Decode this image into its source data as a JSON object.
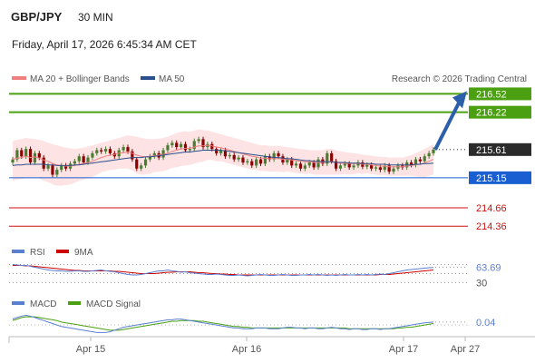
{
  "header": {
    "symbol": "GBP/JPY",
    "timeframe": "30 MIN",
    "datetime": "Friday, April 17, 2026 6:45:34 AM CET",
    "credit": "Research © 2026 Trading Central"
  },
  "colors": {
    "ma20": "#f08080",
    "ma50": "#2b4f8c",
    "bollinger_fill": "#fde3e3",
    "candle_up": "#4a7c32",
    "candle_down": "#8b0000",
    "green_level": "#4aa010",
    "blue_level": "#1a5fd1",
    "red_level": "#cc1111",
    "last_price_bg": "#2b2b2b",
    "arrow": "#2b5faa",
    "rsi": "#5b7fd0",
    "rsi_ma": "#cc0000",
    "macd": "#5b7fd0",
    "macd_signal": "#4aa010"
  },
  "chart_data": [
    {
      "type": "candlestick",
      "legend": [
        {
          "name": "MA 20 + Bollinger Bands",
          "color": "#f08080"
        },
        {
          "name": "MA 50",
          "color": "#2b4f8c"
        }
      ],
      "legend_position": "top-left",
      "ylim": [
        214.2,
        216.6
      ],
      "x_ticks": [
        "Apr 15",
        "Apr 16",
        "Apr 17",
        "Apr 27"
      ],
      "levels": [
        {
          "value": 216.52,
          "label": "216.52",
          "style": "green-box"
        },
        {
          "value": 216.22,
          "label": "216.22",
          "style": "green-box"
        },
        {
          "value": 215.61,
          "label": "215.61",
          "style": "last-price"
        },
        {
          "value": 215.15,
          "label": "215.15",
          "style": "blue-box"
        },
        {
          "value": 214.66,
          "label": "214.66",
          "style": "red-text"
        },
        {
          "value": 214.36,
          "label": "214.36",
          "style": "red-text"
        }
      ],
      "close": [
        215.45,
        215.6,
        215.5,
        215.62,
        215.4,
        215.55,
        215.48,
        215.3,
        215.35,
        215.2,
        215.28,
        215.35,
        215.3,
        215.38,
        215.42,
        215.5,
        215.4,
        215.48,
        215.55,
        215.6,
        215.58,
        215.62,
        215.55,
        215.5,
        215.6,
        215.65,
        215.58,
        215.45,
        215.3,
        215.35,
        215.45,
        215.5,
        215.55,
        215.48,
        215.6,
        215.68,
        215.72,
        215.65,
        215.7,
        215.6,
        215.62,
        215.75,
        215.78,
        215.65,
        215.7,
        215.62,
        215.55,
        215.6,
        215.5,
        215.52,
        215.45,
        215.48,
        215.4,
        215.42,
        215.35,
        215.45,
        215.38,
        215.5,
        215.45,
        215.55,
        215.5,
        215.4,
        215.45,
        215.35,
        215.38,
        215.3,
        215.35,
        215.4,
        215.32,
        215.45,
        215.38,
        215.55,
        215.42,
        215.3,
        215.35,
        215.38,
        215.32,
        215.35,
        215.4,
        215.33,
        215.36,
        215.3,
        215.32,
        215.28,
        215.35,
        215.25,
        215.3,
        215.35,
        215.32,
        215.4,
        215.36,
        215.45,
        215.42,
        215.5,
        215.55,
        215.61
      ],
      "ma20": [
        215.45,
        215.47,
        215.48,
        215.5,
        215.48,
        215.49,
        215.47,
        215.44,
        215.42,
        215.38,
        215.36,
        215.35,
        215.34,
        215.34,
        215.35,
        215.37,
        215.38,
        215.4,
        215.42,
        215.45,
        215.48,
        215.5,
        215.52,
        215.53,
        215.55,
        215.56,
        215.57,
        215.55,
        215.52,
        215.5,
        215.49,
        215.5,
        215.51,
        215.52,
        215.53,
        215.55,
        215.58,
        215.6,
        215.62,
        215.63,
        215.63,
        215.65,
        215.67,
        215.67,
        215.68,
        215.67,
        215.65,
        215.64,
        215.62,
        215.6,
        215.58,
        215.56,
        215.54,
        215.52,
        215.5,
        215.49,
        215.47,
        215.47,
        215.46,
        215.46,
        215.46,
        215.45,
        215.45,
        215.44,
        215.43,
        215.42,
        215.41,
        215.41,
        215.4,
        215.4,
        215.4,
        215.41,
        215.41,
        215.4,
        215.39,
        215.39,
        215.38,
        215.38,
        215.38,
        215.37,
        215.37,
        215.36,
        215.35,
        215.34,
        215.34,
        215.33,
        215.33,
        215.33,
        215.33,
        215.34,
        215.35,
        215.36,
        215.37,
        215.39,
        215.42,
        215.45
      ],
      "ma50": [
        215.35,
        215.36,
        215.36,
        215.37,
        215.37,
        215.37,
        215.37,
        215.37,
        215.36,
        215.36,
        215.35,
        215.35,
        215.35,
        215.35,
        215.36,
        215.36,
        215.37,
        215.38,
        215.39,
        215.4,
        215.41,
        215.42,
        215.43,
        215.44,
        215.45,
        215.46,
        215.47,
        215.48,
        215.48,
        215.48,
        215.49,
        215.49,
        215.5,
        215.51,
        215.52,
        215.53,
        215.54,
        215.55,
        215.56,
        215.57,
        215.57,
        215.58,
        215.59,
        215.6,
        215.6,
        215.6,
        215.6,
        215.6,
        215.59,
        215.58,
        215.57,
        215.56,
        215.55,
        215.54,
        215.53,
        215.52,
        215.51,
        215.5,
        215.49,
        215.48,
        215.48,
        215.47,
        215.46,
        215.46,
        215.45,
        215.44,
        215.43,
        215.43,
        215.42,
        215.42,
        215.41,
        215.41,
        215.41,
        215.4,
        215.4,
        215.4,
        215.39,
        215.39,
        215.39,
        215.38,
        215.38,
        215.38,
        215.37,
        215.37,
        215.37,
        215.36,
        215.36,
        215.36,
        215.36,
        215.36,
        215.36,
        215.37,
        215.37,
        215.38,
        215.38,
        215.39
      ],
      "bb_upper": [
        215.75,
        215.77,
        215.78,
        215.8,
        215.79,
        215.78,
        215.77,
        215.75,
        215.72,
        215.7,
        215.68,
        215.66,
        215.64,
        215.63,
        215.62,
        215.63,
        215.64,
        215.66,
        215.68,
        215.7,
        215.72,
        215.74,
        215.76,
        215.78,
        215.8,
        215.82,
        215.84,
        215.83,
        215.82,
        215.8,
        215.79,
        215.78,
        215.78,
        215.79,
        215.8,
        215.82,
        215.85,
        215.88,
        215.9,
        215.91,
        215.9,
        215.92,
        215.94,
        215.93,
        215.92,
        215.9,
        215.88,
        215.86,
        215.84,
        215.82,
        215.8,
        215.78,
        215.76,
        215.74,
        215.72,
        215.7,
        215.68,
        215.68,
        215.67,
        215.67,
        215.67,
        215.66,
        215.65,
        215.64,
        215.63,
        215.62,
        215.61,
        215.6,
        215.6,
        215.6,
        215.6,
        215.62,
        215.62,
        215.6,
        215.58,
        215.57,
        215.56,
        215.55,
        215.54,
        215.53,
        215.52,
        215.51,
        215.5,
        215.49,
        215.49,
        215.48,
        215.48,
        215.48,
        215.48,
        215.5,
        215.52,
        215.55,
        215.58,
        215.62,
        215.66,
        215.7
      ],
      "bb_lower": [
        215.1,
        215.12,
        215.13,
        215.15,
        215.14,
        215.15,
        215.14,
        215.1,
        215.08,
        215.04,
        215.02,
        215.02,
        215.03,
        215.04,
        215.07,
        215.1,
        215.12,
        215.14,
        215.16,
        215.2,
        215.24,
        215.26,
        215.28,
        215.28,
        215.3,
        215.3,
        215.3,
        215.27,
        215.22,
        215.2,
        215.2,
        215.22,
        215.24,
        215.25,
        215.26,
        215.28,
        215.31,
        215.32,
        215.34,
        215.35,
        215.36,
        215.38,
        215.4,
        215.41,
        215.44,
        215.44,
        215.42,
        215.42,
        215.4,
        215.38,
        215.36,
        215.34,
        215.32,
        215.3,
        215.28,
        215.28,
        215.26,
        215.26,
        215.25,
        215.25,
        215.25,
        215.24,
        215.25,
        215.24,
        215.23,
        215.22,
        215.21,
        215.22,
        215.2,
        215.2,
        215.2,
        215.2,
        215.2,
        215.2,
        215.2,
        215.21,
        215.2,
        215.21,
        215.22,
        215.21,
        215.22,
        215.21,
        215.2,
        215.19,
        215.19,
        215.18,
        215.18,
        215.18,
        215.18,
        215.18,
        215.18,
        215.17,
        215.16,
        215.16,
        215.18,
        215.2
      ]
    },
    {
      "type": "line",
      "legend": [
        {
          "name": "RSI",
          "color": "#5b7fd0"
        },
        {
          "name": "9MA",
          "color": "#cc0000"
        }
      ],
      "legend_position": "top-left",
      "ylim": [
        25,
        75
      ],
      "levels": [
        {
          "value": 63.69,
          "label": "63.69"
        },
        {
          "value": 30,
          "label": "30"
        }
      ],
      "series": [
        {
          "name": "RSI",
          "values": [
            70,
            69,
            68,
            68,
            66,
            64,
            62,
            60,
            58,
            57,
            56,
            56,
            55,
            55,
            56,
            56,
            55,
            55,
            56,
            57,
            58,
            56,
            55,
            54,
            52,
            50,
            48,
            47,
            47,
            48,
            50,
            52,
            54,
            56,
            56,
            58,
            56,
            55,
            53,
            54,
            52,
            51,
            50,
            49,
            48,
            48,
            49,
            48,
            47,
            46,
            46,
            47,
            46,
            45,
            46,
            47,
            48,
            47,
            46,
            46,
            47,
            48,
            47,
            46,
            46,
            47,
            47,
            48,
            47,
            48,
            47,
            46,
            47,
            46,
            47,
            48,
            47,
            47,
            48,
            47,
            48,
            47,
            48,
            49,
            48,
            50,
            52,
            54,
            56,
            58,
            59,
            60,
            61,
            62,
            63,
            63.69
          ]
        },
        {
          "name": "9MA",
          "values": [
            68,
            68,
            68,
            67,
            67,
            66,
            65,
            64,
            63,
            62,
            61,
            60,
            59,
            58,
            57,
            57,
            56,
            56,
            56,
            56,
            56,
            56,
            56,
            55,
            55,
            54,
            53,
            52,
            51,
            50,
            50,
            50,
            50,
            51,
            52,
            53,
            53,
            54,
            54,
            54,
            54,
            53,
            52,
            52,
            51,
            50,
            50,
            49,
            49,
            48,
            48,
            47,
            47,
            47,
            47,
            47,
            47,
            47,
            47,
            47,
            47,
            47,
            47,
            47,
            47,
            47,
            47,
            47,
            47,
            47,
            47,
            47,
            47,
            47,
            47,
            47,
            47,
            47,
            47,
            47,
            47,
            47,
            47,
            48,
            48,
            48,
            49,
            50,
            51,
            52,
            53,
            54,
            55,
            56,
            57,
            58
          ]
        }
      ]
    },
    {
      "type": "line",
      "legend": [
        {
          "name": "MACD",
          "color": "#5b7fd0"
        },
        {
          "name": "MACD Signal",
          "color": "#4aa010"
        }
      ],
      "legend_position": "top-left",
      "ylim": [
        -0.12,
        0.16
      ],
      "levels": [
        {
          "value": 0.04,
          "label": "0.04"
        }
      ],
      "series": [
        {
          "name": "MACD",
          "values": [
            0.08,
            0.1,
            0.12,
            0.13,
            0.12,
            0.1,
            0.08,
            0.06,
            0.04,
            0.02,
            0.0,
            -0.02,
            -0.03,
            -0.04,
            -0.05,
            -0.06,
            -0.07,
            -0.08,
            -0.09,
            -0.1,
            -0.1,
            -0.1,
            -0.09,
            -0.07,
            -0.05,
            -0.03,
            -0.02,
            -0.01,
            0.0,
            0.01,
            0.02,
            0.03,
            0.04,
            0.05,
            0.06,
            0.07,
            0.07,
            0.08,
            0.08,
            0.07,
            0.06,
            0.05,
            0.04,
            0.03,
            0.02,
            0.01,
            0.0,
            -0.01,
            -0.02,
            -0.03,
            -0.04,
            -0.04,
            -0.05,
            -0.05,
            -0.05,
            -0.04,
            -0.04,
            -0.04,
            -0.05,
            -0.05,
            -0.05,
            -0.04,
            -0.03,
            -0.03,
            -0.04,
            -0.04,
            -0.05,
            -0.04,
            -0.04,
            -0.05,
            -0.05,
            -0.04,
            -0.03,
            -0.04,
            -0.05,
            -0.05,
            -0.06,
            -0.05,
            -0.05,
            -0.06,
            -0.06,
            -0.05,
            -0.05,
            -0.06,
            -0.05,
            -0.05,
            -0.04,
            -0.03,
            -0.02,
            -0.01,
            0.0,
            0.01,
            0.02,
            0.03,
            0.035,
            0.04
          ]
        },
        {
          "name": "MACD Signal",
          "values": [
            0.06,
            0.08,
            0.1,
            0.11,
            0.11,
            0.11,
            0.1,
            0.09,
            0.08,
            0.07,
            0.06,
            0.04,
            0.03,
            0.02,
            0.01,
            0.0,
            -0.01,
            -0.02,
            -0.03,
            -0.04,
            -0.05,
            -0.06,
            -0.07,
            -0.07,
            -0.07,
            -0.06,
            -0.05,
            -0.04,
            -0.03,
            -0.02,
            -0.01,
            0.0,
            0.01,
            0.02,
            0.03,
            0.04,
            0.05,
            0.05,
            0.06,
            0.06,
            0.06,
            0.06,
            0.05,
            0.05,
            0.04,
            0.03,
            0.02,
            0.01,
            0.0,
            -0.01,
            -0.02,
            -0.02,
            -0.03,
            -0.03,
            -0.04,
            -0.04,
            -0.04,
            -0.04,
            -0.04,
            -0.04,
            -0.04,
            -0.04,
            -0.04,
            -0.04,
            -0.04,
            -0.04,
            -0.04,
            -0.04,
            -0.04,
            -0.04,
            -0.04,
            -0.04,
            -0.04,
            -0.04,
            -0.04,
            -0.04,
            -0.05,
            -0.05,
            -0.05,
            -0.05,
            -0.05,
            -0.05,
            -0.05,
            -0.05,
            -0.05,
            -0.05,
            -0.05,
            -0.04,
            -0.04,
            -0.03,
            -0.03,
            -0.02,
            -0.01,
            0.0,
            0.01,
            0.02
          ]
        }
      ]
    }
  ]
}
